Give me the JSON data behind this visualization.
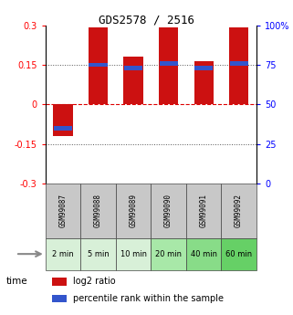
{
  "title": "GDS2578 / 2516",
  "samples": [
    "GSM99087",
    "GSM99088",
    "GSM99089",
    "GSM99090",
    "GSM99091",
    "GSM99092"
  ],
  "time_labels": [
    "2 min",
    "5 min",
    "10 min",
    "20 min",
    "40 min",
    "60 min"
  ],
  "log2_ratio": [
    -0.12,
    0.29,
    0.18,
    0.29,
    0.165,
    0.29
  ],
  "percentile_rank": [
    35,
    75,
    73,
    76,
    73,
    76
  ],
  "ylim": [
    -0.3,
    0.3
  ],
  "yticks_left": [
    -0.3,
    -0.15,
    0,
    0.15,
    0.3
  ],
  "yticks_left_labels": [
    "-0.3",
    "-0.15",
    "0",
    "0.15",
    "0.3"
  ],
  "yticks_right": [
    0,
    25,
    50,
    75,
    100
  ],
  "yticks_right_labels": [
    "0",
    "25",
    "50",
    "75",
    "100%"
  ],
  "bar_color": "#cc1111",
  "blue_color": "#3355cc",
  "bar_width": 0.55,
  "hline_color": "#dd0000",
  "dotted_color": "#555555",
  "sample_bg_color": "#c8c8c8",
  "time_bg_colors": [
    "#d8f0d8",
    "#d8f0d8",
    "#d8f0d8",
    "#a8e8a8",
    "#88dc88",
    "#66d066"
  ],
  "legend_log2_label": "log2 ratio",
  "legend_pct_label": "percentile rank within the sample"
}
